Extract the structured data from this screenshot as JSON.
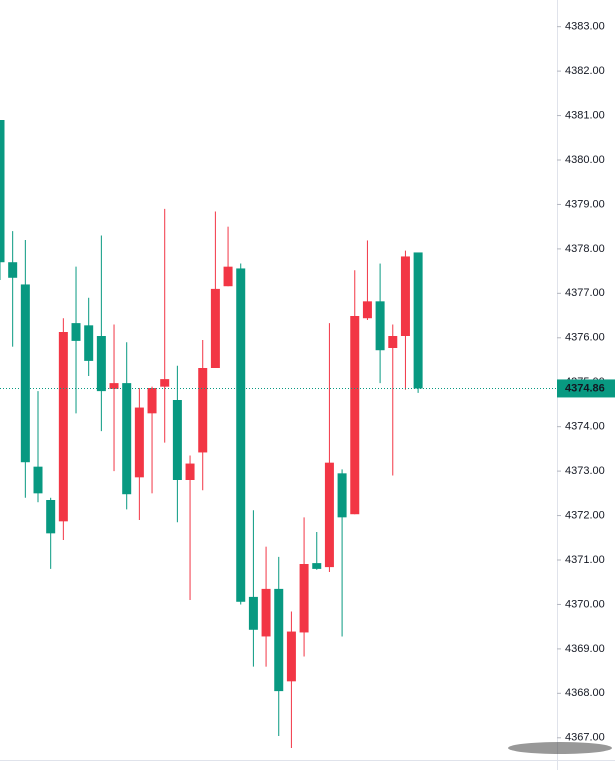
{
  "chart_data": {
    "type": "candlestick",
    "up_color": "#f23645",
    "down_color": "#089981",
    "open": [
      4380.9,
      4377.7,
      4377.2,
      4373.1,
      4372.35,
      4371.87,
      4376.33,
      4376.28,
      4376.04,
      4374.85,
      4374.98,
      4372.86,
      4374.3,
      4374.9,
      4374.6,
      4372.8,
      4373.42,
      4375.32,
      4377.16,
      4377.56,
      4370.17,
      4369.28,
      4370.35,
      4368.27,
      4369.37,
      4370.93,
      4370.84,
      4372.95,
      4372.03,
      4376.44,
      4376.82,
      4375.77,
      4376.04,
      4377.92
    ],
    "high": [
      4380.9,
      4378.4,
      4378.2,
      4374.8,
      4372.4,
      4376.44,
      4377.6,
      4376.9,
      4378.3,
      4376.3,
      4375.9,
      4374.87,
      4374.9,
      4378.9,
      4375.37,
      4373.35,
      4375.95,
      4378.84,
      4378.5,
      4377.67,
      4372.12,
      4371.3,
      4371.07,
      4369.84,
      4371.96,
      4371.63,
      4376.33,
      4373.04,
      4377.52,
      4378.19,
      4377.67,
      4376.3,
      4377.96,
      4377.92
    ],
    "low": [
      4377.3,
      4375.8,
      4372.4,
      4372.3,
      4370.8,
      4371.45,
      4374.3,
      4375.14,
      4373.9,
      4373.0,
      4372.14,
      4371.9,
      4372.5,
      4373.64,
      4371.85,
      4370.1,
      4372.57,
      4375.32,
      4377.16,
      4370.0,
      4368.6,
      4368.6,
      4367.04,
      4366.77,
      4368.83,
      4370.78,
      4370.73,
      4369.28,
      4372.03,
      4376.4,
      4374.98,
      4372.9,
      4374.83,
      4374.76
    ],
    "close": [
      4377.7,
      4377.35,
      4373.2,
      4372.5,
      4371.6,
      4376.13,
      4375.93,
      4375.48,
      4374.8,
      4374.98,
      4372.48,
      4374.43,
      4374.87,
      4375.07,
      4372.8,
      4373.17,
      4375.32,
      4377.1,
      4377.6,
      4370.06,
      4369.43,
      4370.35,
      4368.05,
      4369.39,
      4370.91,
      4370.8,
      4373.19,
      4371.96,
      4376.49,
      4376.82,
      4375.72,
      4376.04,
      4377.83,
      4374.86
    ],
    "ylim": [
      4366.5,
      4383.6
    ],
    "yticks": [
      {
        "value": 4367,
        "label": "4367.00"
      },
      {
        "value": 4368,
        "label": "4368.00"
      },
      {
        "value": 4369,
        "label": "4369.00"
      },
      {
        "value": 4370,
        "label": "4370.00"
      },
      {
        "value": 4371,
        "label": "4371.00"
      },
      {
        "value": 4372,
        "label": "4372.00"
      },
      {
        "value": 4373,
        "label": "4373.00"
      },
      {
        "value": 4374,
        "label": "4374.00"
      },
      {
        "value": 4375,
        "label": "4375.00"
      },
      {
        "value": 4376,
        "label": "4376.00"
      },
      {
        "value": 4377,
        "label": "4377.00"
      },
      {
        "value": 4378,
        "label": "4378.00"
      },
      {
        "value": 4379,
        "label": "4379.00"
      },
      {
        "value": 4380,
        "label": "4380.00"
      },
      {
        "value": 4381,
        "label": "4381.00"
      },
      {
        "value": 4382,
        "label": "4382.00"
      },
      {
        "value": 4383,
        "label": "4383.00"
      }
    ]
  }
}
